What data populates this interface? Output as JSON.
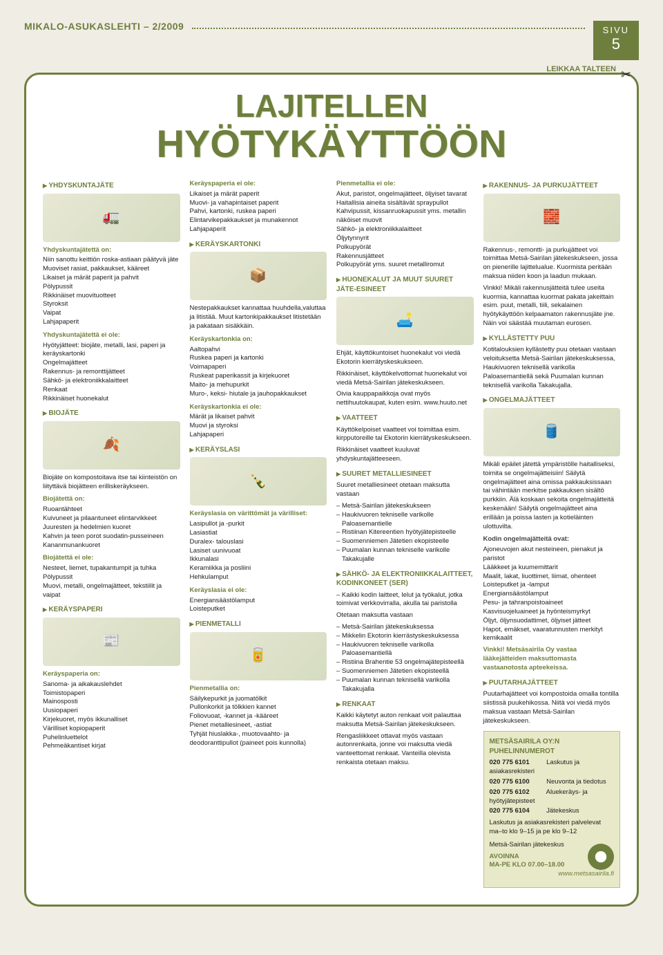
{
  "header": {
    "magazine": "MIKALO-ASUKASLEHTI – 2/2009",
    "page_label": "SIVU",
    "page_num": "5",
    "cut": "LEIKKAA TALTEEN",
    "title1": "LAJITELLEN",
    "title2": "HYÖTYKÄYTTÖÖN"
  },
  "col1": {
    "h1": "YHDYSKUNTAJÄTE",
    "img1": "🚛",
    "p1h": "Yhdyskuntajätettä on:",
    "p1": "Niin sanottu keittiön roska-astiaan päätyvä jäte\nMuoviset rasiat, pakkaukset, kääreet\nLikaiset ja märät paperit ja pahvit\nPölypussit\nRikkinäiset muovituotteet\nStyroksit\nVaipat\nLahjapaperit",
    "p2h": "Yhdyskuntajätettä ei ole:",
    "p2": "Hyötyjätteet: biojäte, metalli, lasi, paperi ja keräyskartonki\nOngelmajätteet\nRakennus- ja remonttijätteet\nSähkö- ja elektroniikkalaitteet\nRenkaat\nRikkinäiset huonekalut",
    "h2": "BIOJÄTE",
    "img2": "🍂",
    "p3": "Biojäte on kompostoitava itse tai kiinteistön on liityttävä biojätteen erilliskeräykseen.",
    "p4h": "Biojätettä on:",
    "p4": "Ruoantähteet\nKuivuneet ja pilaantuneet elintarvikkeet\nJuuresten ja hedelmien kuoret\nKahvin ja teen porot suodatin-pusseineen\nKananmunankuoret",
    "p5h": "Biojätettä ei ole:",
    "p5": "Nesteet, liemet, tupakantumpit ja tuhka\nPölypussit\nMuovi, metalli, ongelmajätteet, tekstiilit ja vaipat",
    "h3": "KERÄYSPAPERI",
    "img3": "📰",
    "p6h": "Keräyspaperia on:",
    "p6": "Sanoma- ja aikakauslehdet\nToimistopaperi\nMainosposti\nUusiopaperi\nKirjekuoret, myös ikkunalliset\nVärilliset kopiopaperit\nPuhelinluettelot\nPehmeäkantiset kirjat"
  },
  "col2": {
    "p1h": "Keräyspaperia ei ole:",
    "p1": "Likaiset ja märät paperit\nMuovi- ja vahapintaiset paperit\nPahvi, kartonki, ruskea paperi\nElintarvikepakkaukset ja munakennot\nLahjapaperit",
    "h1": "KERÄYSKARTONKI",
    "img1": "📦",
    "p2": "Nestepakkaukset kannattaa huuhdella,valuttaa ja litistää. Muut kartonkipakkaukset litistetään ja pakataan sisäkkäin.",
    "p3h": "Keräyskartonkia on:",
    "p3": "Aaltopahvi\nRuskea paperi ja kartonki\nVoimapaperi\nRuskeat paperikassit ja kirjekuoret\nMaito- ja mehupurkit\nMuro-, keksi- hiutale ja jauhopakkaukset",
    "p4h": "Keräyskartonkia ei ole:",
    "p4": "Märät ja likaiset pahvit\nMuovi ja styroksi\nLahjapaperi",
    "h2": "KERÄYSLASI",
    "img2": "🍾",
    "p5h": "Keräyslasia on värittömät ja värilliset:",
    "p5": "Lasipullot ja -purkit\nLasiastiat\nDuralex- talouslasi\nLasiset uunivuoat\nIkkunalasi\nKeramiikka ja posliini\nHehkulamput",
    "p6h": "Keräyslasia ei ole:",
    "p6": "Energiansäästölamput\nLoisteputket",
    "h3": "PIENMETALLI",
    "img3": "🥫",
    "p7h": "Pienmetallia on:",
    "p7": "Säilykepurkit ja juomatölkit\nPullonkorkit ja tölkkien kannet\nFoliovuoat, -kannet ja -kääreet\nPienet metalliesineet, -astiat\nTyhjät hiuslakka-, muotovaahto- ja deodoranttipullot (paineet pois kunnolla)"
  },
  "col3": {
    "p1h": "Pienmetallia ei ole:",
    "p1": "Akut, paristot, ongelmajätteet, öljyiset tavarat\nHaitallisia aineita sisältävät spraypullot\nKahvipussit, kissanruokapussit yms. metallin näköiset muovit\nSähkö- ja elektroniikkalaitteet\nÖljytynnyrit\nPolkupyörät\nRakennusjätteet\nPolkupyörät yms. suuret metalliromut",
    "h1": "HUONEKALUT JA MUUT SUURET JÄTE-ESINEET",
    "img1": "🛋️",
    "p2": "Ehjät, käyttökuntoiset huonekalut voi viedä Ekotorin kierrätyskeskukseen.",
    "p3": "Rikkinäiset, käyttökelvottomat huonekalut voi viedä Metsä-Sairilan jätekeskukseen.",
    "p4": "Oivia kauppapaikkoja ovat myös nettihuutokaupat, kuten esim. www.huuto.net",
    "h2": "VAATTEET",
    "p5": "Käyttökelpoiset vaatteet voi toimittaa esim. kirpputoreille tai Ekotorin kierrätyskeskukseen.",
    "p6": "Rikkinäiset vaatteet kuuluvat yhdyskuntajätteeseen.",
    "h3": "SUURET METALLIESINEET",
    "p7": "Suuret metalliesineet otetaan maksutta vastaan",
    "l1": [
      "Metsä-Sairilan jätekeskukseen",
      "Haukivuoren tekniselle varikolle Paloasemantielle",
      "Ristiinan Kitereentien hyötyjätepisteelle",
      "Suomenniemen Jätetien ekopisteelle",
      "Puumalan kunnan tekniselle varikolle Takakujalle"
    ],
    "h4": "SÄHKÖ- JA ELEKTRONIIKKALAITTEET, KODINKONEET (SER)",
    "p8": "– Kaikki kodin laitteet, lelut ja työkalut, jotka toimivat verkkovirralla, akulla tai paristolla",
    "p9": "Otetaan maksutta vastaan",
    "l2": [
      "Metsä-Sairilan jätekeskuksessa",
      "Mikkelin Ekotorin kierrästyskeskuksessa",
      "Haukivuoren tekniselle varikolla Paloasemantiellä",
      "Ristiina Brahentie 53 ongelmajätepisteellä",
      "Suomenniemen Jätetien ekopisteellä",
      "Puumalan kunnan teknisellä varikolla Takakujalla"
    ],
    "h5": "RENKAAT",
    "p10": "Kaikki käytetyt auton renkaat voit palauttaa maksutta Metsä-Sairilan jätekeskukseen.",
    "p11": "Rengasliikkeet ottavat myös vastaan autonrenkaita, jonne voi maksutta viedä vanteettomat renkaat. Vanteilla olevista renkaista otetaan maksu."
  },
  "col4": {
    "h1": "RAKENNUS- JA PURKUJÄTTEET",
    "img1": "🧱",
    "p1": "Rakennus-, remontti- ja purkujätteet voi toimittaa Metsä-Sairilan jätekeskukseen, jossa on pienerille lajittelualue. Kuormista peritään maksua niiden koon ja laadun mukaan.",
    "p1b": "Vinkki! Mikäli rakennusjätteitä tulee useita kuormia, kannattaa kuormat pakata jakeittain esim. puut, metalli, tiili, sekalainen hyötykäyttöön kelpaamaton rakennusjäte jne. Näin voi säästää muutaman eurosen.",
    "h2": "KYLLÄSTETTY PUU",
    "p2": "Kotitalouksien kyllästetty puu otetaan vastaan veloituksetta Metsä-Sairilan jätekeskuksessa, Haukivuoren teknisellä varikolla Paloasemantiellä sekä Puumalan kunnan teknisellä varikolla Takakujalla.",
    "h3": "ONGELMAJÄTTEET",
    "img2": "🛢️",
    "p3": "Mikäli epäilet jätettä ympäristölle haitalliseksi, toimita se ongelmajätteisiin! Säilytä ongelmajätteet aina omissa pakkauksissaan tai vähintään merkitse pakkauksen sisältö purkkiin. Älä koskaan sekoita ongelmajätteitä keskenään! Säilytä ongelmajätteet aina erillään ja poissa lasten ja kotieläinten ulottuvilta.",
    "p4h": "Kodin ongelmajätteitä ovat:",
    "p4": "Ajoneuvojen akut nesteineen, pienakut ja paristot\nLääkkeet ja kuumemittarit\nMaalit, lakat, liuottimet, liimat, ohenteet\nLoisteputket ja -lamput\nEnergiansäästölamput\nPesu- ja tahranpoistoaineet\nKasvisuojeluaineet ja hyönteismyrkyt\nÖljyt, öljynsuodattimet, öljyiset jätteet\nHapot, emäkset, vaaratunnusten merkityt kemikaalit",
    "vinkki": "Vinkki! Metsäsairila Oy vastaa lääkejätteiden maksuttomasta vastaanotosta apteekeissa.",
    "h4": "PUUTARHAJÄTTEET",
    "p5": "Puutarhajätteet voi kompostoida omalla tontilla siistissä puukehikossa. Niitä voi viedä myös maksua vastaan Metsä-Sairilan jätekeskukseen."
  },
  "phone": {
    "title": "METSÄSAIRILA OY:N PUHELINNUMEROT",
    "rows": [
      {
        "n": "020 775 6101",
        "t": "Laskutus ja asiakasrekisteri"
      },
      {
        "n": "020 775 6100",
        "t": "Neuvonta ja tiedotus"
      },
      {
        "n": "020 775 6102",
        "t": "Aluekeräys- ja hyötyjätepisteet"
      },
      {
        "n": "020 775 6104",
        "t": "Jätekeskus"
      }
    ],
    "note": "Laskutus ja asiakasrekisteri palvelevat ma–to klo 9–15 ja pe klo 9–12",
    "open1": "Metsä-Sairilan jätekeskus",
    "open2": "AVOINNA",
    "open3": "MA-PE KLO 07.00–18.00",
    "url": "www.metsasairila.fi"
  }
}
